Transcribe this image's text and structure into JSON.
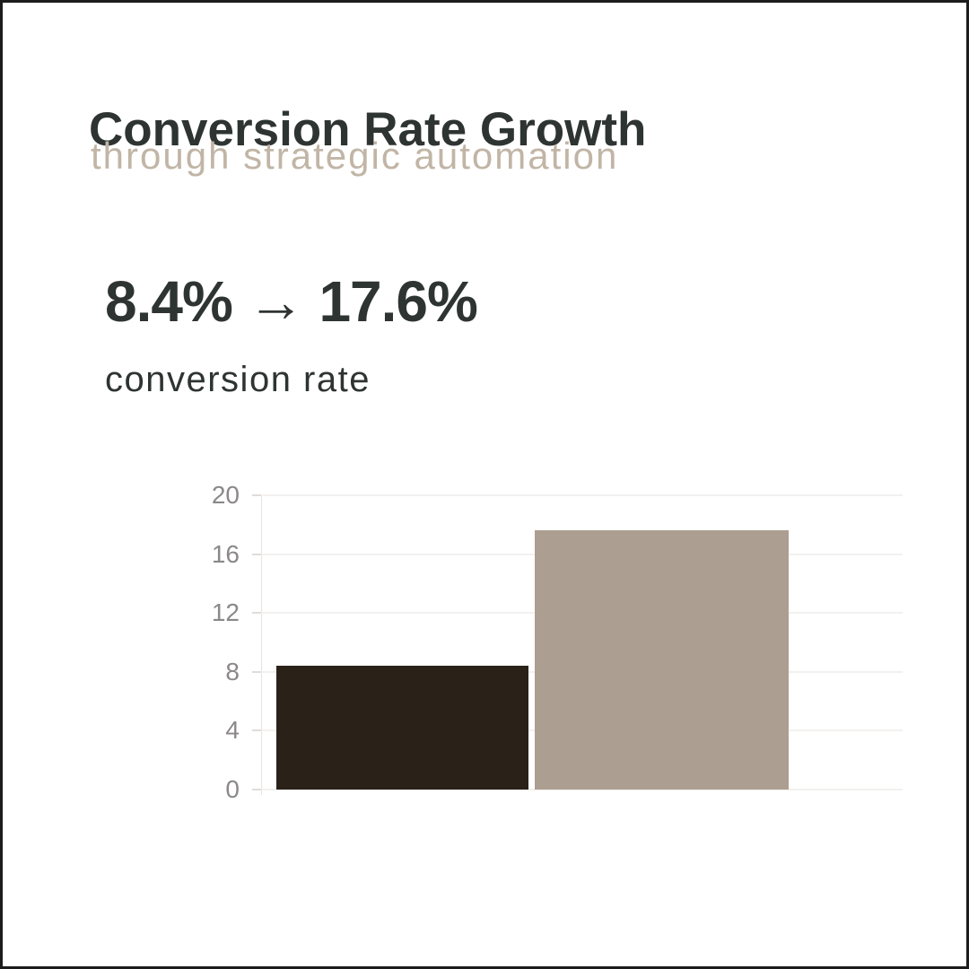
{
  "header": {
    "title": "Conversion Rate Growth",
    "subtitle": "through strategic automation"
  },
  "stat": {
    "value": "8.4% → 17.6%",
    "label": "conversion rate"
  },
  "colors": {
    "text_dark": "#2e3431",
    "subtitle_tan": "#c1b5a6",
    "frame": "#1c1c1c",
    "tick_label_gray": "#8b8888"
  },
  "chart_data": {
    "type": "bar",
    "categories": [
      "",
      ""
    ],
    "values": [
      8.4,
      17.6
    ],
    "bar_colors": [
      "#2a2118",
      "#ac9e90"
    ],
    "title": "",
    "xlabel": "",
    "ylabel": "",
    "ylim": [
      0,
      20
    ],
    "yticks": [
      0,
      4,
      8,
      12,
      16,
      20
    ],
    "grid": "horizontal-faint",
    "legend": "none",
    "x_tick_labels": "none"
  }
}
